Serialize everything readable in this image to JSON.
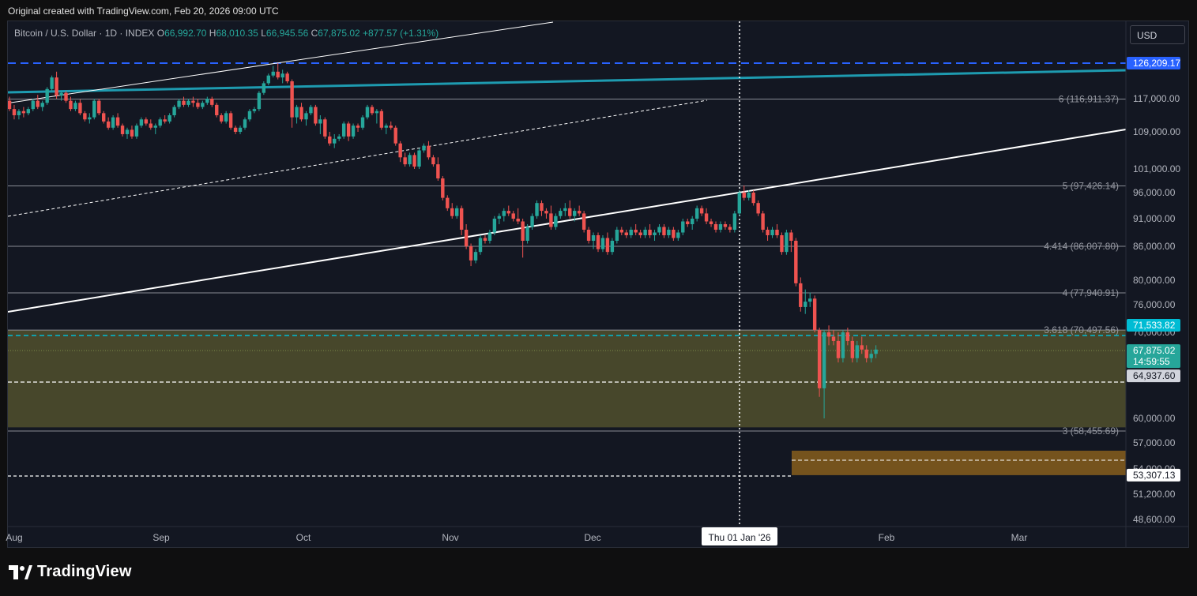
{
  "credit": "Original created with TradingView.com, Feb 20, 2026 09:00 UTC",
  "header": {
    "symbol": "Bitcoin / U.S. Dollar · 1D · INDEX",
    "open_label": "O",
    "open": "66,992.70",
    "high_label": "H",
    "high": "68,010.35",
    "low_label": "L",
    "low": "66,945.56",
    "close_label": "C",
    "close": "67,875.02",
    "change": "+877.57 (+1.31%)"
  },
  "currency": "USD",
  "brand": "TradingView",
  "chart_data": {
    "type": "candlestick",
    "x_ticks": [
      "Aug",
      "Sep",
      "Oct",
      "Nov",
      "Dec",
      "Feb",
      "Mar"
    ],
    "crosshair_date": "Thu 01 Jan '26",
    "y_ticks": [
      "117,000.00",
      "109,000.00",
      "101,000.00",
      "96,000.00",
      "91,000.00",
      "86,000.00",
      "80,000.00",
      "76,000.00",
      "70,000.00",
      "60,000.00",
      "57,000.00",
      "54,000.00",
      "51,200.00",
      "48,600.00"
    ],
    "y_tick_values": [
      117000,
      109000,
      101000,
      96000,
      91000,
      86000,
      80000,
      76000,
      70000,
      60000,
      57000,
      54000,
      51200,
      48600
    ],
    "price_tags": [
      {
        "value": 126209.17,
        "label": "126,209.17",
        "color": "#2962ff"
      },
      {
        "value": 71533.82,
        "label": "71,533.82",
        "color": "#00bcd4"
      },
      {
        "value": 67875.02,
        "label": "67,875.02",
        "sub": "14:59:55",
        "color": "#26a69a"
      },
      {
        "value": 64937.6,
        "label": "64,937.60",
        "color": "#d1d4dc"
      },
      {
        "value": 53307.13,
        "label": "53,307.13",
        "color": "#ffffff"
      }
    ],
    "fib_levels": [
      {
        "value": 116911.37,
        "label": "6 (116,911.37)"
      },
      {
        "value": 97426.14,
        "label": "5 (97,426.14)"
      },
      {
        "value": 86007.8,
        "label": "4.414 (86,007.80)"
      },
      {
        "value": 77940.91,
        "label": "4 (77,940.91)"
      },
      {
        "value": 70497.56,
        "label": "3.618 (70,497.56)"
      },
      {
        "value": 58455.69,
        "label": "3 (58,455.69)"
      }
    ],
    "zones": [
      {
        "from": 70497.56,
        "to": 58900,
        "color": "#4a4a2c",
        "start": "Aug",
        "end": "right-edge"
      },
      {
        "from": 56100,
        "to": 53307.13,
        "color": "#7a561e",
        "start": "Jan",
        "end": "right-edge"
      }
    ],
    "candles_ohlc": [
      [
        116500,
        117500,
        114000,
        114500
      ],
      [
        114500,
        115500,
        112000,
        113000
      ],
      [
        113000,
        114500,
        112000,
        114000
      ],
      [
        114000,
        115000,
        112500,
        113500
      ],
      [
        113500,
        115000,
        113000,
        114500
      ],
      [
        114500,
        117000,
        114000,
        116500
      ],
      [
        116500,
        118000,
        114500,
        115000
      ],
      [
        115000,
        116500,
        114000,
        116000
      ],
      [
        116000,
        120000,
        115500,
        119500
      ],
      [
        119500,
        123000,
        119000,
        122500
      ],
      [
        122500,
        124000,
        117000,
        117800
      ],
      [
        117800,
        119000,
        116500,
        118500
      ],
      [
        118500,
        119000,
        116000,
        116500
      ],
      [
        116500,
        117500,
        114000,
        114500
      ],
      [
        114500,
        116500,
        114000,
        116000
      ],
      [
        116000,
        116800,
        113000,
        113500
      ],
      [
        113500,
        114000,
        111500,
        112000
      ],
      [
        112000,
        113500,
        111000,
        112500
      ],
      [
        112500,
        117000,
        112000,
        116500
      ],
      [
        116500,
        117000,
        113000,
        113500
      ],
      [
        113500,
        114000,
        111000,
        111500
      ],
      [
        111500,
        112500,
        109500,
        110000
      ],
      [
        110000,
        113000,
        109500,
        112500
      ],
      [
        112500,
        113500,
        110000,
        110500
      ],
      [
        110500,
        111000,
        108000,
        108500
      ],
      [
        108500,
        110000,
        107500,
        109500
      ],
      [
        109500,
        110500,
        107500,
        108000
      ],
      [
        108000,
        111000,
        107500,
        110500
      ],
      [
        110500,
        112500,
        110000,
        112000
      ],
      [
        112000,
        112500,
        110500,
        111000
      ],
      [
        111000,
        112000,
        109500,
        110000
      ],
      [
        110000,
        111000,
        108500,
        110500
      ],
      [
        110500,
        112500,
        110000,
        112000
      ],
      [
        112000,
        113000,
        111000,
        111500
      ],
      [
        111500,
        113500,
        111000,
        113000
      ],
      [
        113000,
        115500,
        112500,
        115000
      ],
      [
        115000,
        117000,
        114500,
        116500
      ],
      [
        116500,
        117500,
        115000,
        115500
      ],
      [
        115500,
        117000,
        115000,
        116500
      ],
      [
        116500,
        117500,
        115000,
        116000
      ],
      [
        116000,
        117000,
        114500,
        115000
      ],
      [
        115000,
        116500,
        114500,
        116000
      ],
      [
        116000,
        117500,
        115500,
        117000
      ],
      [
        117000,
        117500,
        115000,
        115500
      ],
      [
        115500,
        116000,
        112500,
        113000
      ],
      [
        113000,
        113500,
        111000,
        111500
      ],
      [
        111500,
        114000,
        111000,
        113500
      ],
      [
        113500,
        114000,
        109500,
        110000
      ],
      [
        110000,
        110500,
        108500,
        109000
      ],
      [
        109000,
        110500,
        108500,
        110000
      ],
      [
        110000,
        112500,
        109500,
        112000
      ],
      [
        112000,
        114500,
        111500,
        114000
      ],
      [
        114000,
        115000,
        113500,
        114500
      ],
      [
        114500,
        119000,
        114000,
        118500
      ],
      [
        118500,
        121500,
        118000,
        121000
      ],
      [
        121000,
        123500,
        120500,
        123000
      ],
      [
        123000,
        125500,
        122500,
        124000
      ],
      [
        124000,
        126209,
        122000,
        122500
      ],
      [
        122500,
        124500,
        121000,
        123500
      ],
      [
        123500,
        124000,
        121000,
        121500
      ],
      [
        121500,
        122000,
        110000,
        112500
      ],
      [
        112500,
        115500,
        111000,
        115000
      ],
      [
        115000,
        116000,
        111500,
        112000
      ],
      [
        112000,
        114000,
        110500,
        113500
      ],
      [
        113500,
        115500,
        113000,
        115000
      ],
      [
        115000,
        115500,
        110500,
        111000
      ],
      [
        111000,
        113000,
        108500,
        112000
      ],
      [
        112000,
        112500,
        107500,
        108000
      ],
      [
        108000,
        109000,
        106000,
        106500
      ],
      [
        106500,
        108500,
        105500,
        107500
      ],
      [
        107500,
        108500,
        107000,
        108000
      ],
      [
        108000,
        111500,
        107500,
        111000
      ],
      [
        111000,
        111500,
        107000,
        108000
      ],
      [
        108000,
        111000,
        107500,
        110500
      ],
      [
        110500,
        111000,
        109000,
        110000
      ],
      [
        110000,
        113000,
        109500,
        112500
      ],
      [
        112500,
        115500,
        112000,
        115000
      ],
      [
        115000,
        115500,
        113000,
        113500
      ],
      [
        113500,
        114500,
        111000,
        114000
      ],
      [
        114000,
        114500,
        109500,
        110000
      ],
      [
        110000,
        111000,
        108500,
        110500
      ],
      [
        110500,
        111500,
        109500,
        110000
      ],
      [
        110000,
        110500,
        106000,
        106500
      ],
      [
        106500,
        107000,
        102500,
        103500
      ],
      [
        103500,
        104500,
        101500,
        102000
      ],
      [
        102000,
        104500,
        101500,
        104000
      ],
      [
        104000,
        104500,
        101000,
        101500
      ],
      [
        101500,
        105500,
        101000,
        105000
      ],
      [
        105000,
        106500,
        104500,
        106000
      ],
      [
        106000,
        107000,
        103000,
        103500
      ],
      [
        103500,
        104000,
        101500,
        102000
      ],
      [
        102000,
        103500,
        98500,
        99000
      ],
      [
        99000,
        99500,
        94500,
        95000
      ],
      [
        95000,
        95500,
        92500,
        93000
      ],
      [
        93000,
        94000,
        91000,
        91500
      ],
      [
        91500,
        93500,
        91000,
        93000
      ],
      [
        93000,
        93500,
        88000,
        89000
      ],
      [
        89000,
        90000,
        85500,
        86000
      ],
      [
        86000,
        86500,
        82500,
        83500
      ],
      [
        83500,
        85500,
        83000,
        85000
      ],
      [
        85000,
        88000,
        84500,
        87500
      ],
      [
        87500,
        88000,
        86500,
        87000
      ],
      [
        87000,
        89000,
        86500,
        88500
      ],
      [
        88500,
        91500,
        88000,
        91000
      ],
      [
        91000,
        92000,
        90000,
        91500
      ],
      [
        91500,
        93000,
        90500,
        92500
      ],
      [
        92500,
        93500,
        91500,
        92000
      ],
      [
        92000,
        92500,
        90500,
        91000
      ],
      [
        91000,
        93000,
        90000,
        90500
      ],
      [
        90500,
        91000,
        84000,
        87000
      ],
      [
        87000,
        90000,
        86500,
        89500
      ],
      [
        89500,
        92000,
        89000,
        91500
      ],
      [
        91500,
        94500,
        91000,
        94000
      ],
      [
        94000,
        94500,
        91500,
        92500
      ],
      [
        92500,
        93000,
        91000,
        92000
      ],
      [
        92000,
        93500,
        89000,
        89500
      ],
      [
        89500,
        92000,
        89000,
        91500
      ],
      [
        91500,
        93000,
        91000,
        92500
      ],
      [
        92500,
        94000,
        91500,
        93000
      ],
      [
        93000,
        94500,
        91000,
        91500
      ],
      [
        91500,
        93000,
        90500,
        92500
      ],
      [
        92500,
        93500,
        91500,
        92000
      ],
      [
        92000,
        92500,
        88500,
        89000
      ],
      [
        89000,
        89500,
        86500,
        87000
      ],
      [
        87000,
        88500,
        85500,
        88000
      ],
      [
        88000,
        88500,
        85000,
        85500
      ],
      [
        85500,
        88000,
        85000,
        87500
      ],
      [
        87500,
        88500,
        84500,
        85000
      ],
      [
        85000,
        87500,
        84500,
        87000
      ],
      [
        87000,
        89500,
        86500,
        89000
      ],
      [
        89000,
        89500,
        88000,
        88500
      ],
      [
        88500,
        89000,
        87500,
        88000
      ],
      [
        88000,
        89500,
        87500,
        89000
      ],
      [
        89000,
        90000,
        88000,
        88500
      ],
      [
        88500,
        89000,
        87500,
        88000
      ],
      [
        88000,
        89500,
        87500,
        89000
      ],
      [
        89000,
        90000,
        87500,
        88000
      ],
      [
        88000,
        89000,
        87000,
        88500
      ],
      [
        88500,
        90000,
        88000,
        89500
      ],
      [
        89500,
        90000,
        87500,
        88000
      ],
      [
        88000,
        89500,
        87500,
        89000
      ],
      [
        89000,
        89500,
        87000,
        87500
      ],
      [
        87500,
        89000,
        87000,
        88500
      ],
      [
        88500,
        91000,
        88000,
        90500
      ],
      [
        90500,
        91000,
        89500,
        90000
      ],
      [
        90000,
        91500,
        89000,
        91000
      ],
      [
        91000,
        93500,
        90500,
        93000
      ],
      [
        93000,
        93500,
        91500,
        92000
      ],
      [
        92000,
        93000,
        90000,
        90500
      ],
      [
        90500,
        91000,
        89500,
        90000
      ],
      [
        90000,
        90500,
        88500,
        89000
      ],
      [
        89000,
        90500,
        88500,
        90000
      ],
      [
        90000,
        90500,
        89000,
        89500
      ],
      [
        89500,
        90000,
        88500,
        89000
      ],
      [
        89000,
        92500,
        88500,
        92000
      ],
      [
        92000,
        96500,
        91500,
        96000
      ],
      [
        96000,
        97500,
        94500,
        95000
      ],
      [
        95000,
        96500,
        94500,
        96000
      ],
      [
        96000,
        96500,
        93500,
        94000
      ],
      [
        94000,
        94500,
        91500,
        92000
      ],
      [
        92000,
        92500,
        88500,
        89000
      ],
      [
        89000,
        89500,
        87000,
        88000
      ],
      [
        88000,
        89500,
        87500,
        89000
      ],
      [
        89000,
        90000,
        87500,
        88000
      ],
      [
        88000,
        88500,
        84500,
        85000
      ],
      [
        85000,
        89000,
        84500,
        88500
      ],
      [
        88500,
        89000,
        85000,
        87000
      ],
      [
        87000,
        87500,
        79000,
        79500
      ],
      [
        79500,
        80500,
        74500,
        75500
      ],
      [
        75500,
        78500,
        74000,
        76500
      ],
      [
        76500,
        78000,
        75500,
        77000
      ],
      [
        77000,
        77500,
        70000,
        70500
      ],
      [
        70500,
        71000,
        62500,
        63500
      ],
      [
        63500,
        70500,
        60000,
        70000
      ],
      [
        70000,
        71500,
        68500,
        69500
      ],
      [
        69500,
        70500,
        68500,
        69000
      ],
      [
        69000,
        70000,
        66500,
        67000
      ],
      [
        67000,
        70500,
        66500,
        70000
      ],
      [
        70000,
        71000,
        68500,
        69000
      ],
      [
        69000,
        69500,
        66500,
        67000
      ],
      [
        67000,
        69000,
        66500,
        68500
      ],
      [
        68500,
        69500,
        67500,
        68000
      ],
      [
        68000,
        68500,
        66500,
        67000
      ],
      [
        67000,
        68000,
        66500,
        67500
      ],
      [
        67500,
        68500,
        67000,
        68000
      ]
    ]
  }
}
